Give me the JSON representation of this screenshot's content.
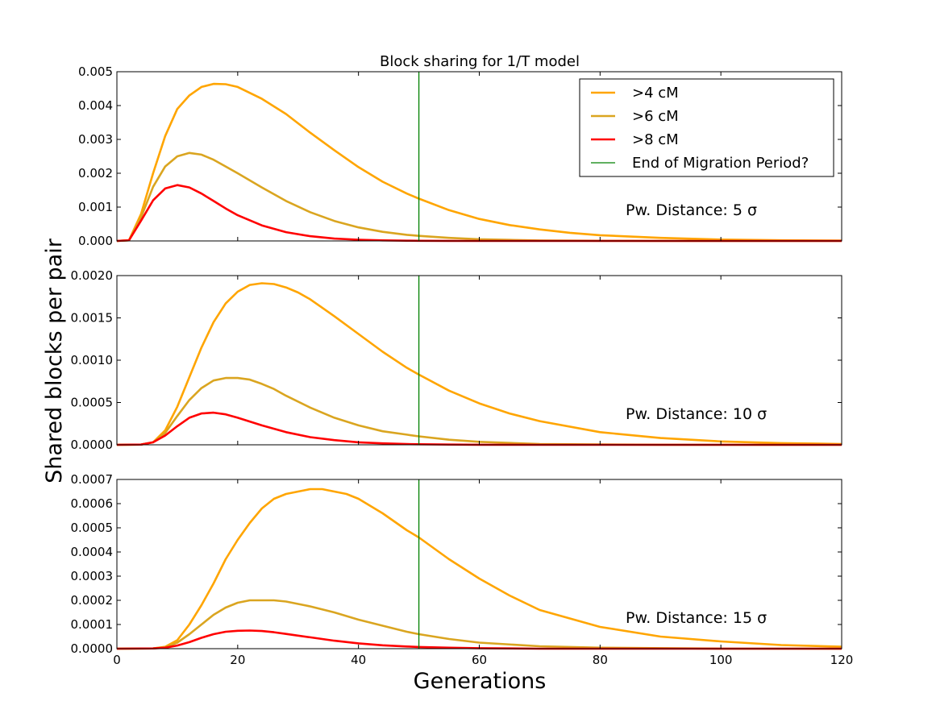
{
  "chart_data": {
    "type": "line",
    "title": "Block sharing for 1/T model",
    "xlabel": "Generations",
    "ylabel": "Shared blocks per pair",
    "xlim": [
      0,
      120
    ],
    "xticks": [
      "0",
      "20",
      "40",
      "60",
      "80",
      "100",
      "120"
    ],
    "grid": false,
    "legend": {
      "placement": "top-right of top panel",
      "entries": [
        {
          "label": ">4 cM",
          "color": "#FFA500"
        },
        {
          "label": ">6 cM",
          "color": "#DAA520"
        },
        {
          "label": ">8 cM",
          "color": "#FF0000"
        },
        {
          "label": "End of Migration Period?",
          "color": "#008000"
        }
      ]
    },
    "vline": {
      "x": 50,
      "color": "#008000",
      "name": "End of Migration Period?"
    },
    "panels": [
      {
        "annotation": "Pw. Distance: 5 σ",
        "ylim": [
          0,
          0.005
        ],
        "yticks": [
          "0.000",
          "0.001",
          "0.002",
          "0.003",
          "0.004",
          "0.005"
        ],
        "yticks_values": [
          0,
          0.001,
          0.002,
          0.003,
          0.004,
          0.005
        ],
        "series": [
          {
            "name": ">4 cM",
            "color": "#FFA500",
            "x": [
              0,
              2,
              4,
              6,
              8,
              10,
              12,
              14,
              16,
              18,
              20,
              24,
              28,
              32,
              36,
              40,
              44,
              48,
              50,
              55,
              60,
              65,
              70,
              75,
              80,
              90,
              100,
              110,
              120
            ],
            "y": [
              0,
              2e-05,
              0.0008,
              0.002,
              0.0031,
              0.0039,
              0.0043,
              0.00455,
              0.00464,
              0.00463,
              0.00455,
              0.0042,
              0.00375,
              0.0032,
              0.00268,
              0.00218,
              0.00175,
              0.0014,
              0.00125,
              0.00091,
              0.00065,
              0.00047,
              0.00034,
              0.00024,
              0.00017,
              9e-05,
              4e-05,
              2e-05,
              1e-05
            ]
          },
          {
            "name": ">6 cM",
            "color": "#DAA520",
            "x": [
              0,
              2,
              4,
              6,
              8,
              10,
              12,
              14,
              16,
              18,
              20,
              24,
              28,
              32,
              36,
              40,
              44,
              48,
              50,
              55,
              60,
              65,
              70,
              80,
              90,
              100,
              110,
              120
            ],
            "y": [
              0,
              2e-05,
              0.0007,
              0.0016,
              0.0022,
              0.0025,
              0.0026,
              0.00255,
              0.0024,
              0.0022,
              0.002,
              0.00158,
              0.00118,
              0.00085,
              0.00059,
              0.0004,
              0.00027,
              0.00018,
              0.00015,
              9e-05,
              5e-05,
              3e-05,
              1.5e-05,
              5e-06,
              2e-06,
              0,
              0,
              0
            ]
          },
          {
            "name": ">8 cM",
            "color": "#FF0000",
            "x": [
              0,
              2,
              4,
              6,
              8,
              10,
              12,
              14,
              16,
              18,
              20,
              24,
              28,
              32,
              36,
              40,
              44,
              48,
              50,
              55,
              60,
              70,
              80,
              100,
              120
            ],
            "y": [
              0,
              2e-05,
              0.0006,
              0.0012,
              0.00155,
              0.00165,
              0.00158,
              0.0014,
              0.00118,
              0.00096,
              0.00076,
              0.00046,
              0.00026,
              0.00014,
              7e-05,
              3.5e-05,
              1.7e-05,
              8e-06,
              5e-06,
              2e-06,
              1e-06,
              0,
              0,
              0,
              0
            ]
          }
        ]
      },
      {
        "annotation": "Pw. Distance: 10 σ",
        "ylim": [
          0,
          0.002
        ],
        "yticks": [
          "0.0000",
          "0.0005",
          "0.0010",
          "0.0015",
          "0.0020"
        ],
        "yticks_values": [
          0,
          0.0005,
          0.001,
          0.0015,
          0.002
        ],
        "series": [
          {
            "name": ">4 cM",
            "color": "#FFA500",
            "x": [
              0,
              4,
              6,
              8,
              10,
              12,
              14,
              16,
              18,
              20,
              22,
              24,
              26,
              28,
              30,
              32,
              36,
              40,
              44,
              48,
              50,
              55,
              60,
              65,
              70,
              80,
              90,
              100,
              110,
              120
            ],
            "y": [
              0,
              3e-06,
              3e-05,
              0.00017,
              0.00045,
              0.0008,
              0.00115,
              0.00145,
              0.00167,
              0.00181,
              0.00189,
              0.00191,
              0.0019,
              0.00186,
              0.0018,
              0.00172,
              0.00152,
              0.00131,
              0.0011,
              0.00091,
              0.00083,
              0.00064,
              0.00049,
              0.00037,
              0.00028,
              0.00015,
              8e-05,
              4e-05,
              2e-05,
              1e-05
            ]
          },
          {
            "name": ">6 cM",
            "color": "#DAA520",
            "x": [
              0,
              4,
              6,
              8,
              10,
              12,
              14,
              16,
              18,
              20,
              22,
              24,
              26,
              28,
              32,
              36,
              40,
              44,
              48,
              50,
              55,
              60,
              70,
              80,
              90,
              100,
              120
            ],
            "y": [
              0,
              3e-06,
              3e-05,
              0.00014,
              0.00034,
              0.00053,
              0.00067,
              0.00076,
              0.00079,
              0.00079,
              0.00077,
              0.00072,
              0.00066,
              0.00058,
              0.00044,
              0.00032,
              0.00023,
              0.00016,
              0.00012,
              0.0001,
              6e-05,
              3.5e-05,
              1e-05,
              4e-06,
              1e-06,
              0,
              0
            ]
          },
          {
            "name": ">8 cM",
            "color": "#FF0000",
            "x": [
              0,
              4,
              6,
              8,
              10,
              12,
              14,
              16,
              18,
              20,
              24,
              28,
              32,
              36,
              40,
              44,
              48,
              50,
              55,
              60,
              70,
              80,
              100,
              120
            ],
            "y": [
              0,
              3e-06,
              3e-05,
              0.00011,
              0.00022,
              0.00032,
              0.00037,
              0.00038,
              0.00036,
              0.00032,
              0.00023,
              0.00015,
              9e-05,
              5.5e-05,
              3e-05,
              1.7e-05,
              9e-06,
              7e-06,
              3e-06,
              1e-06,
              0,
              0,
              0,
              0
            ]
          }
        ]
      },
      {
        "annotation": "Pw. Distance: 15 σ",
        "ylim": [
          0,
          0.0007
        ],
        "yticks": [
          "0.0000",
          "0.0001",
          "0.0002",
          "0.0003",
          "0.0004",
          "0.0005",
          "0.0006",
          "0.0007"
        ],
        "yticks_values": [
          0,
          0.0001,
          0.0002,
          0.0003,
          0.0004,
          0.0005,
          0.0006,
          0.0007
        ],
        "series": [
          {
            "name": ">4 cM",
            "color": "#FFA500",
            "x": [
              0,
              6,
              8,
              10,
              12,
              14,
              16,
              18,
              20,
              22,
              24,
              26,
              28,
              30,
              32,
              34,
              36,
              38,
              40,
              44,
              48,
              50,
              55,
              60,
              65,
              70,
              80,
              90,
              100,
              110,
              120
            ],
            "y": [
              0,
              1e-06,
              8e-06,
              3.5e-05,
              0.0001,
              0.00018,
              0.00027,
              0.00037,
              0.00045,
              0.00052,
              0.00058,
              0.00062,
              0.00064,
              0.00065,
              0.00066,
              0.00066,
              0.00065,
              0.00064,
              0.00062,
              0.00056,
              0.00049,
              0.00046,
              0.00037,
              0.00029,
              0.00022,
              0.00016,
              9e-05,
              5e-05,
              3e-05,
              1.5e-05,
              8e-06
            ]
          },
          {
            "name": ">6 cM",
            "color": "#DAA520",
            "x": [
              0,
              6,
              8,
              10,
              12,
              14,
              16,
              18,
              20,
              22,
              24,
              26,
              28,
              30,
              32,
              36,
              40,
              44,
              48,
              50,
              55,
              60,
              70,
              80,
              100,
              120
            ],
            "y": [
              0,
              1e-06,
              6e-06,
              2.5e-05,
              6e-05,
              0.0001,
              0.00014,
              0.00017,
              0.00019,
              0.0002,
              0.0002,
              0.0002,
              0.000195,
              0.000185,
              0.000175,
              0.00015,
              0.00012,
              9.5e-05,
              7e-05,
              6e-05,
              4e-05,
              2.5e-05,
              1e-05,
              4e-06,
              0,
              0
            ]
          },
          {
            "name": ">8 cM",
            "color": "#FF0000",
            "x": [
              0,
              6,
              8,
              10,
              12,
              14,
              16,
              18,
              20,
              22,
              24,
              26,
              28,
              32,
              36,
              40,
              44,
              48,
              50,
              55,
              60,
              70,
              80,
              100,
              120
            ],
            "y": [
              0,
              1e-06,
              4e-06,
              1.3e-05,
              2.7e-05,
              4.5e-05,
              6e-05,
              7e-05,
              7.4e-05,
              7.5e-05,
              7.3e-05,
              6.8e-05,
              6.1e-05,
              4.7e-05,
              3.3e-05,
              2.2e-05,
              1.4e-05,
              9e-06,
              7e-06,
              4e-06,
              2e-06,
              0,
              0,
              0,
              0
            ]
          }
        ]
      }
    ]
  }
}
